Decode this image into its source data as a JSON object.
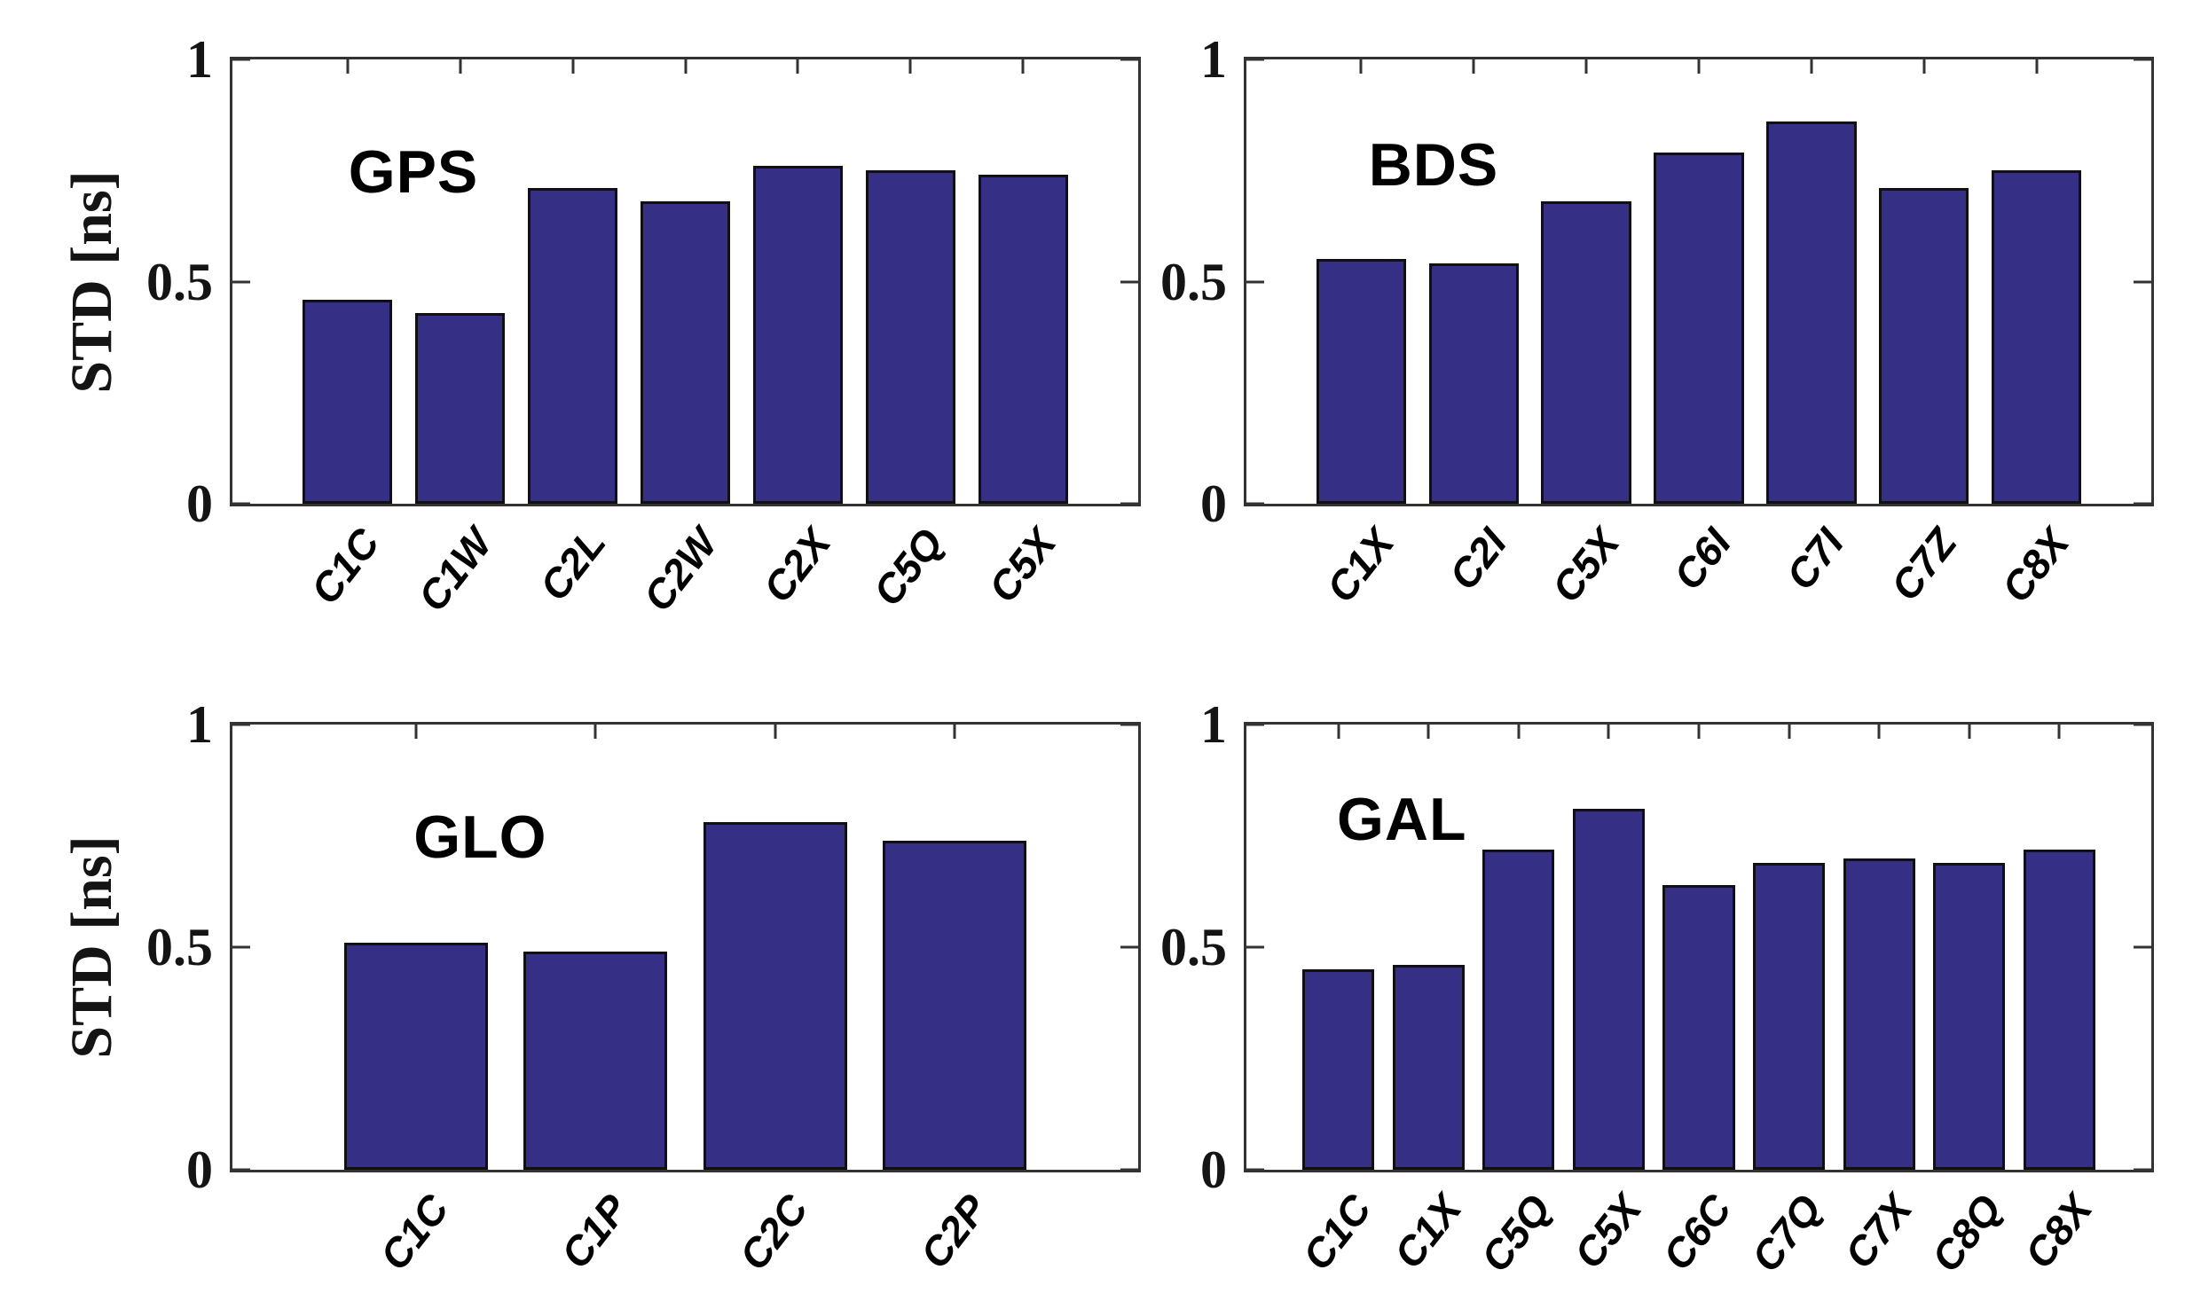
{
  "figure": {
    "background": "#ffffff",
    "ylabel": "STD [ns]",
    "colors": {
      "bar_fill": "#362f86",
      "bar_edge": "#101010",
      "axis": "#333333",
      "tick_text": "#141414",
      "label_text": "#000000"
    }
  },
  "chart_data": [
    {
      "type": "bar",
      "title": "GPS",
      "categories": [
        "C1C",
        "C1W",
        "C2L",
        "C2W",
        "C2X",
        "C5Q",
        "C5X"
      ],
      "values": [
        0.46,
        0.43,
        0.71,
        0.68,
        0.76,
        0.75,
        0.74
      ],
      "xlabel": "",
      "ylabel": "STD [ns]",
      "ylim": [
        0,
        1
      ],
      "yticks": [
        {
          "v": 0,
          "label": "0"
        },
        {
          "v": 0.5,
          "label": "0.5"
        },
        {
          "v": 1,
          "label": "1"
        }
      ],
      "grid": false,
      "bar_width_frac": 0.8,
      "title_pos": {
        "left_pct": 12.8,
        "top_pct": 18.5
      }
    },
    {
      "type": "bar",
      "title": "BDS",
      "categories": [
        "C1X",
        "C2I",
        "C5X",
        "C6I",
        "C7I",
        "C7Z",
        "C8X"
      ],
      "values": [
        0.55,
        0.54,
        0.68,
        0.79,
        0.86,
        0.71,
        0.75
      ],
      "xlabel": "",
      "ylabel": "",
      "ylim": [
        0,
        1
      ],
      "yticks": [
        {
          "v": 0,
          "label": "0"
        },
        {
          "v": 0.5,
          "label": "0.5"
        },
        {
          "v": 1,
          "label": "1"
        }
      ],
      "grid": false,
      "bar_width_frac": 0.8,
      "title_pos": {
        "left_pct": 13.5,
        "top_pct": 17.0
      }
    },
    {
      "type": "bar",
      "title": "GLO",
      "categories": [
        "C1C",
        "C1P",
        "C2C",
        "C2P"
      ],
      "values": [
        0.51,
        0.49,
        0.78,
        0.74
      ],
      "xlabel": "",
      "ylabel": "STD [ns]",
      "ylim": [
        0,
        1
      ],
      "yticks": [
        {
          "v": 0,
          "label": "0"
        },
        {
          "v": 0.5,
          "label": "0.5"
        },
        {
          "v": 1,
          "label": "1"
        }
      ],
      "grid": false,
      "bar_width_frac": 0.8,
      "title_pos": {
        "left_pct": 20.0,
        "top_pct": 18.5
      }
    },
    {
      "type": "bar",
      "title": "GAL",
      "categories": [
        "C1C",
        "C1X",
        "C5Q",
        "C5X",
        "C6C",
        "C7Q",
        "C7X",
        "C8Q",
        "C8X"
      ],
      "values": [
        0.45,
        0.46,
        0.72,
        0.81,
        0.64,
        0.69,
        0.7,
        0.69,
        0.72
      ],
      "xlabel": "",
      "ylabel": "",
      "ylim": [
        0,
        1
      ],
      "yticks": [
        {
          "v": 0,
          "label": "0"
        },
        {
          "v": 0.5,
          "label": "0.5"
        },
        {
          "v": 1,
          "label": "1"
        }
      ],
      "grid": false,
      "bar_width_frac": 0.8,
      "title_pos": {
        "left_pct": 10.0,
        "top_pct": 14.5
      }
    }
  ]
}
